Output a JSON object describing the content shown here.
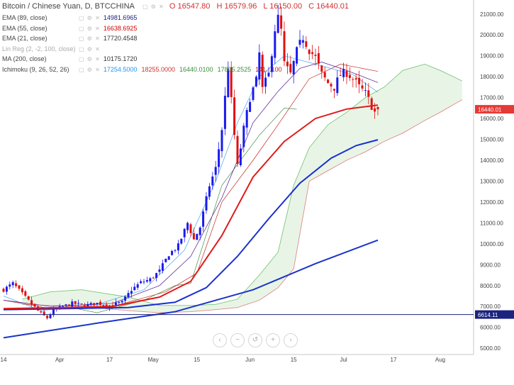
{
  "legend": {
    "title": "Bitcoin / Chinese Yuan, D, BTCCHINA",
    "ohlc": {
      "o": "O 16547.80",
      "h": "H 16579.96",
      "l": "L 16150.00",
      "c": "C 16440.01"
    },
    "rows": [
      {
        "name": "EMA (89, close)",
        "values": [
          "14981.6965"
        ],
        "colors": [
          "#1a237e"
        ]
      },
      {
        "name": "EMA (55, close)",
        "values": [
          "16638.6925"
        ],
        "colors": [
          "#d50000"
        ]
      },
      {
        "name": "EMA (21, close)",
        "values": [
          "17720.4548"
        ],
        "colors": [
          "#333333"
        ]
      },
      {
        "name": "Lin Reg (2, -2, 100, close)",
        "values": [],
        "colors": []
      },
      {
        "name": "MA (200, close)",
        "values": [
          "10175.1720"
        ],
        "colors": [
          "#333333"
        ]
      },
      {
        "name": "Ichimoku (9, 26, 52, 26)",
        "values": [
          "17254.5000",
          "18255.0000",
          "16440.0100",
          "17805.2525",
          "141...100"
        ],
        "colors": [
          "#2196f3",
          "#d32f2f",
          "#388e3c",
          "#388e3c",
          "#b71c1c"
        ]
      }
    ]
  },
  "price_labels": {
    "last": "16440.01",
    "line": "6614.11"
  },
  "nav_icons": [
    "chevron-left-icon",
    "zoom-out-icon",
    "reset-icon",
    "zoom-in-icon",
    "chevron-right-icon"
  ],
  "colors": {
    "up": "#1a1aee",
    "down": "#e01010",
    "ema55": "#e01a1a",
    "ema89": "#1a2fd0",
    "ma200": "#1a35c8",
    "cloud_bull": "#e8f5e6",
    "cloud_bear": "#fbe3e3",
    "cloud_edge_bull": "#7cc57c",
    "cloud_edge_bear": "#e08a8a",
    "line": "#1a237e",
    "axis_text": "#444444"
  },
  "chart_data": {
    "type": "candlestick",
    "title": "Bitcoin / Chinese Yuan, D, BTCCHINA",
    "y_ticks": [
      5000,
      6000,
      7000,
      8000,
      9000,
      10000,
      11000,
      12000,
      13000,
      14000,
      15000,
      16000,
      17000,
      18000,
      19000,
      20000,
      21000
    ],
    "ylim": [
      4700,
      21400
    ],
    "x_ticks": [
      {
        "label": "14",
        "day": 0
      },
      {
        "label": "Apr",
        "day": 18
      },
      {
        "label": "17",
        "day": 34
      },
      {
        "label": "May",
        "day": 48
      },
      {
        "label": "15",
        "day": 62
      },
      {
        "label": "Jun",
        "day": 79
      },
      {
        "label": "15",
        "day": 93
      },
      {
        "label": "Jul",
        "day": 109
      },
      {
        "label": "17",
        "day": 125
      },
      {
        "label": "Aug",
        "day": 140
      }
    ],
    "last_day": 120,
    "close_anchors": [
      [
        0,
        7800
      ],
      [
        3,
        8100
      ],
      [
        6,
        7600
      ],
      [
        9,
        7100
      ],
      [
        12,
        6650
      ],
      [
        14,
        6450
      ],
      [
        16,
        6800
      ],
      [
        19,
        7000
      ],
      [
        22,
        7150
      ],
      [
        26,
        7050
      ],
      [
        30,
        7150
      ],
      [
        34,
        7050
      ],
      [
        38,
        7200
      ],
      [
        41,
        7800
      ],
      [
        44,
        8150
      ],
      [
        47,
        8300
      ],
      [
        50,
        8700
      ],
      [
        53,
        9500
      ],
      [
        56,
        9900
      ],
      [
        59,
        11000
      ],
      [
        61,
        10200
      ],
      [
        63,
        10800
      ],
      [
        66,
        12800
      ],
      [
        68,
        13600
      ],
      [
        70,
        15500
      ],
      [
        72,
        18500
      ],
      [
        74,
        15200
      ],
      [
        75,
        13700
      ],
      [
        77,
        15500
      ],
      [
        79,
        17000
      ],
      [
        81,
        17800
      ],
      [
        82,
        19100
      ],
      [
        83,
        17400
      ],
      [
        85,
        18100
      ],
      [
        87,
        20300
      ],
      [
        88,
        20800
      ],
      [
        89,
        20200
      ],
      [
        90,
        18600
      ],
      [
        92,
        18100
      ],
      [
        94,
        19200
      ],
      [
        96,
        19900
      ],
      [
        98,
        19300
      ],
      [
        100,
        18900
      ],
      [
        102,
        18100
      ],
      [
        104,
        17700
      ],
      [
        106,
        17500
      ],
      [
        108,
        18100
      ],
      [
        110,
        18200
      ],
      [
        112,
        17900
      ],
      [
        114,
        17500
      ],
      [
        116,
        17200
      ],
      [
        118,
        16600
      ],
      [
        119,
        16300
      ],
      [
        120,
        16440
      ]
    ],
    "candle_seed": 7,
    "series": [
      {
        "name": "EMA (55, close)",
        "points": [
          [
            0,
            6900
          ],
          [
            20,
            6950
          ],
          [
            35,
            7000
          ],
          [
            50,
            7450
          ],
          [
            60,
            8200
          ],
          [
            70,
            10400
          ],
          [
            80,
            13200
          ],
          [
            90,
            14900
          ],
          [
            100,
            16000
          ],
          [
            110,
            16450
          ],
          [
            120,
            16639
          ]
        ]
      },
      {
        "name": "EMA (89, close)",
        "points": [
          [
            0,
            6850
          ],
          [
            20,
            6900
          ],
          [
            40,
            6950
          ],
          [
            55,
            7200
          ],
          [
            65,
            7900
          ],
          [
            75,
            9400
          ],
          [
            85,
            11200
          ],
          [
            95,
            12900
          ],
          [
            105,
            14100
          ],
          [
            113,
            14700
          ],
          [
            120,
            14982
          ]
        ]
      },
      {
        "name": "MA (200, close)",
        "points": [
          [
            0,
            5500
          ],
          [
            30,
            6200
          ],
          [
            55,
            6750
          ],
          [
            80,
            7800
          ],
          [
            100,
            9050
          ],
          [
            120,
            10175
          ]
        ]
      },
      {
        "name": "EMA (21, close)",
        "points": [
          [
            0,
            7300
          ],
          [
            15,
            7000
          ],
          [
            35,
            7150
          ],
          [
            50,
            8000
          ],
          [
            60,
            9400
          ],
          [
            70,
            12200
          ],
          [
            80,
            15800
          ],
          [
            88,
            17300
          ],
          [
            95,
            18400
          ],
          [
            102,
            18700
          ],
          [
            110,
            18300
          ],
          [
            120,
            17720
          ]
        ]
      },
      {
        "name": "Ichimoku conversion",
        "points": [
          [
            0,
            7500
          ],
          [
            12,
            6800
          ],
          [
            30,
            7100
          ],
          [
            45,
            7800
          ],
          [
            58,
            9700
          ],
          [
            68,
            13000
          ],
          [
            75,
            15800
          ],
          [
            82,
            18000
          ],
          [
            90,
            19000
          ],
          [
            100,
            18600
          ],
          [
            112,
            18100
          ],
          [
            120,
            17254
          ]
        ]
      },
      {
        "name": "Ichimoku base",
        "points": [
          [
            0,
            7300
          ],
          [
            15,
            6900
          ],
          [
            35,
            7000
          ],
          [
            52,
            7700
          ],
          [
            62,
            8600
          ],
          [
            70,
            12000
          ],
          [
            80,
            14000
          ],
          [
            88,
            15700
          ],
          [
            98,
            17900
          ],
          [
            108,
            18600
          ],
          [
            120,
            18255
          ]
        ]
      },
      {
        "name": "Ichimoku lagging",
        "points": [
          [
            20,
            7000
          ],
          [
            30,
            6700
          ],
          [
            45,
            7300
          ],
          [
            55,
            8000
          ],
          [
            60,
            8100
          ],
          [
            70,
            12800
          ],
          [
            82,
            15200
          ],
          [
            90,
            16500
          ],
          [
            94,
            16440
          ]
        ]
      },
      {
        "name": "Span A",
        "points": [
          [
            6,
            7350
          ],
          [
            15,
            7700
          ],
          [
            25,
            7800
          ],
          [
            40,
            7450
          ],
          [
            50,
            7050
          ],
          [
            60,
            7050
          ],
          [
            68,
            7100
          ],
          [
            75,
            7350
          ],
          [
            82,
            8500
          ],
          [
            88,
            9600
          ],
          [
            93,
            12800
          ],
          [
            98,
            14600
          ],
          [
            104,
            15700
          ],
          [
            110,
            16300
          ],
          [
            116,
            17000
          ],
          [
            122,
            17500
          ],
          [
            128,
            18300
          ],
          [
            135,
            18600
          ],
          [
            140,
            18300
          ],
          [
            147,
            17800
          ]
        ]
      },
      {
        "name": "Span B",
        "points": [
          [
            6,
            7100
          ],
          [
            15,
            7050
          ],
          [
            25,
            7000
          ],
          [
            40,
            6800
          ],
          [
            50,
            6700
          ],
          [
            60,
            6750
          ],
          [
            68,
            6850
          ],
          [
            75,
            6950
          ],
          [
            82,
            7300
          ],
          [
            88,
            7900
          ],
          [
            93,
            8800
          ],
          [
            98,
            13000
          ],
          [
            104,
            13500
          ],
          [
            110,
            14000
          ],
          [
            116,
            14400
          ],
          [
            122,
            14900
          ],
          [
            128,
            15300
          ],
          [
            135,
            15900
          ],
          [
            140,
            16300
          ],
          [
            147,
            16900
          ]
        ]
      }
    ]
  }
}
